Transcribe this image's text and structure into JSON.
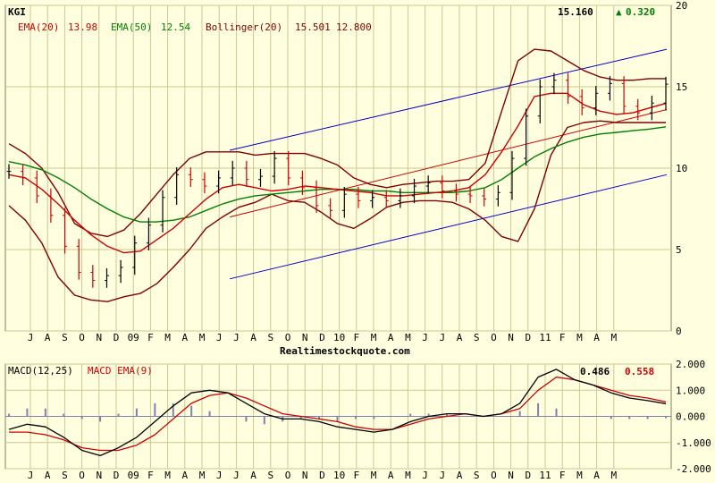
{
  "header": {
    "ticker": "KGI",
    "price": "15.160",
    "change": "0.320",
    "change_arrow": "▲",
    "ema20_label": "EMA(20)",
    "ema20_value": "13.98",
    "ema50_label": "EMA(50)",
    "ema50_value": "12.54",
    "boll_label": "Bollinger(20)",
    "boll_upper": "15.501",
    "boll_lower": "12.800"
  },
  "footer": {
    "source": "Realtimestockquote.com"
  },
  "macd_header": {
    "macd_label": "MACD(12,25)",
    "signal_label": "MACD EMA(9)",
    "macd_value": "0.486",
    "signal_value": "0.558"
  },
  "colors": {
    "background": "#ffffe0",
    "grid": "#c8c890",
    "price_up": "#000000",
    "price_down": "#cc0000",
    "ema20": "#cc0000",
    "ema50": "#008000",
    "bollinger": "#800000",
    "trend_channel": "#0000cc",
    "regression": "#cc0000",
    "macd": "#000000",
    "signal": "#cc0000",
    "histogram": "#8080b0",
    "change_up": "#008000"
  },
  "chart_data": [
    {
      "type": "line",
      "panel": "price",
      "title": "KGI",
      "ylim": [
        0,
        20
      ],
      "y_ticks": [
        "0",
        "5",
        "10",
        "15",
        "20"
      ],
      "month_labels": [
        "J",
        "A",
        "S",
        "O",
        "N",
        "D",
        "09",
        "F",
        "M",
        "A",
        "M",
        "J",
        "J",
        "A",
        "S",
        "O",
        "N",
        "D",
        "10",
        "F",
        "M",
        "A",
        "M",
        "J",
        "J",
        "A",
        "S",
        "O",
        "N",
        "D",
        "11",
        "F",
        "M",
        "A",
        "M"
      ],
      "series": [
        {
          "name": "EMA(20)",
          "values": [
            9.6,
            9.4,
            8.7,
            7.8,
            6.8,
            5.9,
            5.2,
            4.8,
            4.9,
            5.6,
            6.3,
            7.2,
            8.1,
            8.8,
            9.0,
            8.8,
            8.6,
            8.7,
            8.9,
            8.8,
            8.7,
            8.6,
            8.5,
            8.3,
            8.3,
            8.4,
            8.5,
            8.6,
            8.8,
            9.6,
            11.0,
            12.6,
            14.4,
            14.6,
            14.6,
            13.9,
            13.5,
            13.3,
            13.4,
            13.7,
            13.98
          ]
        },
        {
          "name": "EMA(50)",
          "values": [
            10.4,
            10.2,
            9.9,
            9.4,
            8.8,
            8.1,
            7.5,
            7.0,
            6.7,
            6.7,
            6.8,
            7.0,
            7.4,
            7.8,
            8.1,
            8.3,
            8.4,
            8.5,
            8.6,
            8.7,
            8.7,
            8.7,
            8.6,
            8.6,
            8.5,
            8.5,
            8.5,
            8.5,
            8.6,
            8.8,
            9.3,
            10.0,
            10.7,
            11.2,
            11.6,
            11.9,
            12.1,
            12.2,
            12.3,
            12.4,
            12.54
          ]
        },
        {
          "name": "Bollinger Upper(20)",
          "values": [
            11.5,
            10.9,
            10.0,
            8.5,
            6.6,
            6.0,
            5.8,
            6.2,
            7.2,
            8.4,
            9.6,
            10.6,
            11.0,
            11.0,
            11.0,
            10.8,
            10.9,
            10.9,
            10.9,
            10.6,
            10.2,
            9.4,
            9.0,
            8.8,
            9.0,
            9.1,
            9.2,
            9.2,
            9.3,
            10.3,
            13.5,
            16.6,
            17.3,
            17.2,
            16.6,
            16.0,
            15.6,
            15.4,
            15.4,
            15.5,
            15.501
          ]
        },
        {
          "name": "Bollinger Lower(20)",
          "values": [
            7.7,
            6.8,
            5.4,
            3.3,
            2.2,
            1.9,
            1.8,
            2.1,
            2.3,
            2.9,
            3.9,
            5.0,
            6.3,
            7.0,
            7.6,
            7.9,
            8.4,
            8.0,
            7.9,
            7.3,
            6.6,
            6.3,
            6.9,
            7.6,
            7.9,
            8.0,
            8.0,
            7.9,
            7.5,
            6.8,
            5.8,
            5.5,
            7.5,
            10.8,
            12.5,
            12.8,
            12.9,
            12.8,
            12.8,
            12.8,
            12.8
          ]
        },
        {
          "name": "Upper Channel",
          "values": [
            11.1,
            17.3
          ]
        },
        {
          "name": "Lower Channel",
          "values": [
            3.2,
            9.6
          ]
        },
        {
          "name": "Regression",
          "values": [
            7.0,
            13.6
          ]
        },
        {
          "name": "Price",
          "values": [
            9.8,
            9.4,
            8.3,
            7.1,
            5.2,
            3.6,
            3.1,
            3.4,
            3.9,
            5.4,
            6.5,
            8.2,
            9.6,
            9.3,
            8.9,
            9.4,
            10.0,
            9.3,
            9.5,
            10.6,
            9.4,
            8.8,
            7.7,
            7.4,
            8.4,
            8.0,
            8.2,
            8.0,
            8.3,
            8.9,
            9.1,
            8.6,
            8.4,
            8.3,
            8.1,
            8.5,
            10.6,
            13.2,
            15.0,
            15.4,
            14.4,
            13.7,
            14.6,
            15.2,
            13.8,
            13.4,
            14.0,
            15.16
          ]
        }
      ]
    },
    {
      "type": "line",
      "panel": "macd",
      "ylim": [
        -2.0,
        2.0
      ],
      "y_ticks": [
        "2.000",
        "1.000",
        "0.000",
        "-1.000",
        "-2.000"
      ],
      "series": [
        {
          "name": "MACD(12,25)",
          "values": [
            -0.5,
            -0.3,
            -0.4,
            -0.8,
            -1.3,
            -1.5,
            -1.2,
            -0.8,
            -0.2,
            0.4,
            0.9,
            1.0,
            0.9,
            0.5,
            0.1,
            -0.1,
            -0.1,
            -0.2,
            -0.4,
            -0.5,
            -0.6,
            -0.5,
            -0.2,
            0.0,
            0.1,
            0.1,
            0.0,
            0.1,
            0.5,
            1.5,
            1.8,
            1.4,
            1.2,
            0.9,
            0.7,
            0.6,
            0.486
          ]
        },
        {
          "name": "MACD EMA(9)",
          "values": [
            -0.6,
            -0.6,
            -0.7,
            -0.9,
            -1.2,
            -1.3,
            -1.3,
            -1.1,
            -0.7,
            -0.1,
            0.5,
            0.8,
            0.9,
            0.7,
            0.4,
            0.1,
            0.0,
            -0.1,
            -0.2,
            -0.4,
            -0.5,
            -0.5,
            -0.3,
            -0.1,
            0.0,
            0.1,
            0.0,
            0.1,
            0.3,
            1.0,
            1.5,
            1.4,
            1.2,
            1.0,
            0.8,
            0.7,
            0.558
          ]
        },
        {
          "name": "Histogram",
          "values": [
            0.1,
            0.3,
            0.3,
            0.1,
            -0.1,
            -0.2,
            0.1,
            0.3,
            0.5,
            0.5,
            0.4,
            0.2,
            0.0,
            -0.2,
            -0.3,
            -0.2,
            -0.1,
            -0.1,
            -0.2,
            -0.1,
            -0.1,
            0.0,
            0.1,
            0.1,
            0.1,
            0.0,
            0.0,
            0.0,
            0.2,
            0.5,
            0.3,
            0.0,
            0.0,
            -0.1,
            -0.1,
            -0.1,
            -0.07
          ]
        }
      ]
    }
  ]
}
